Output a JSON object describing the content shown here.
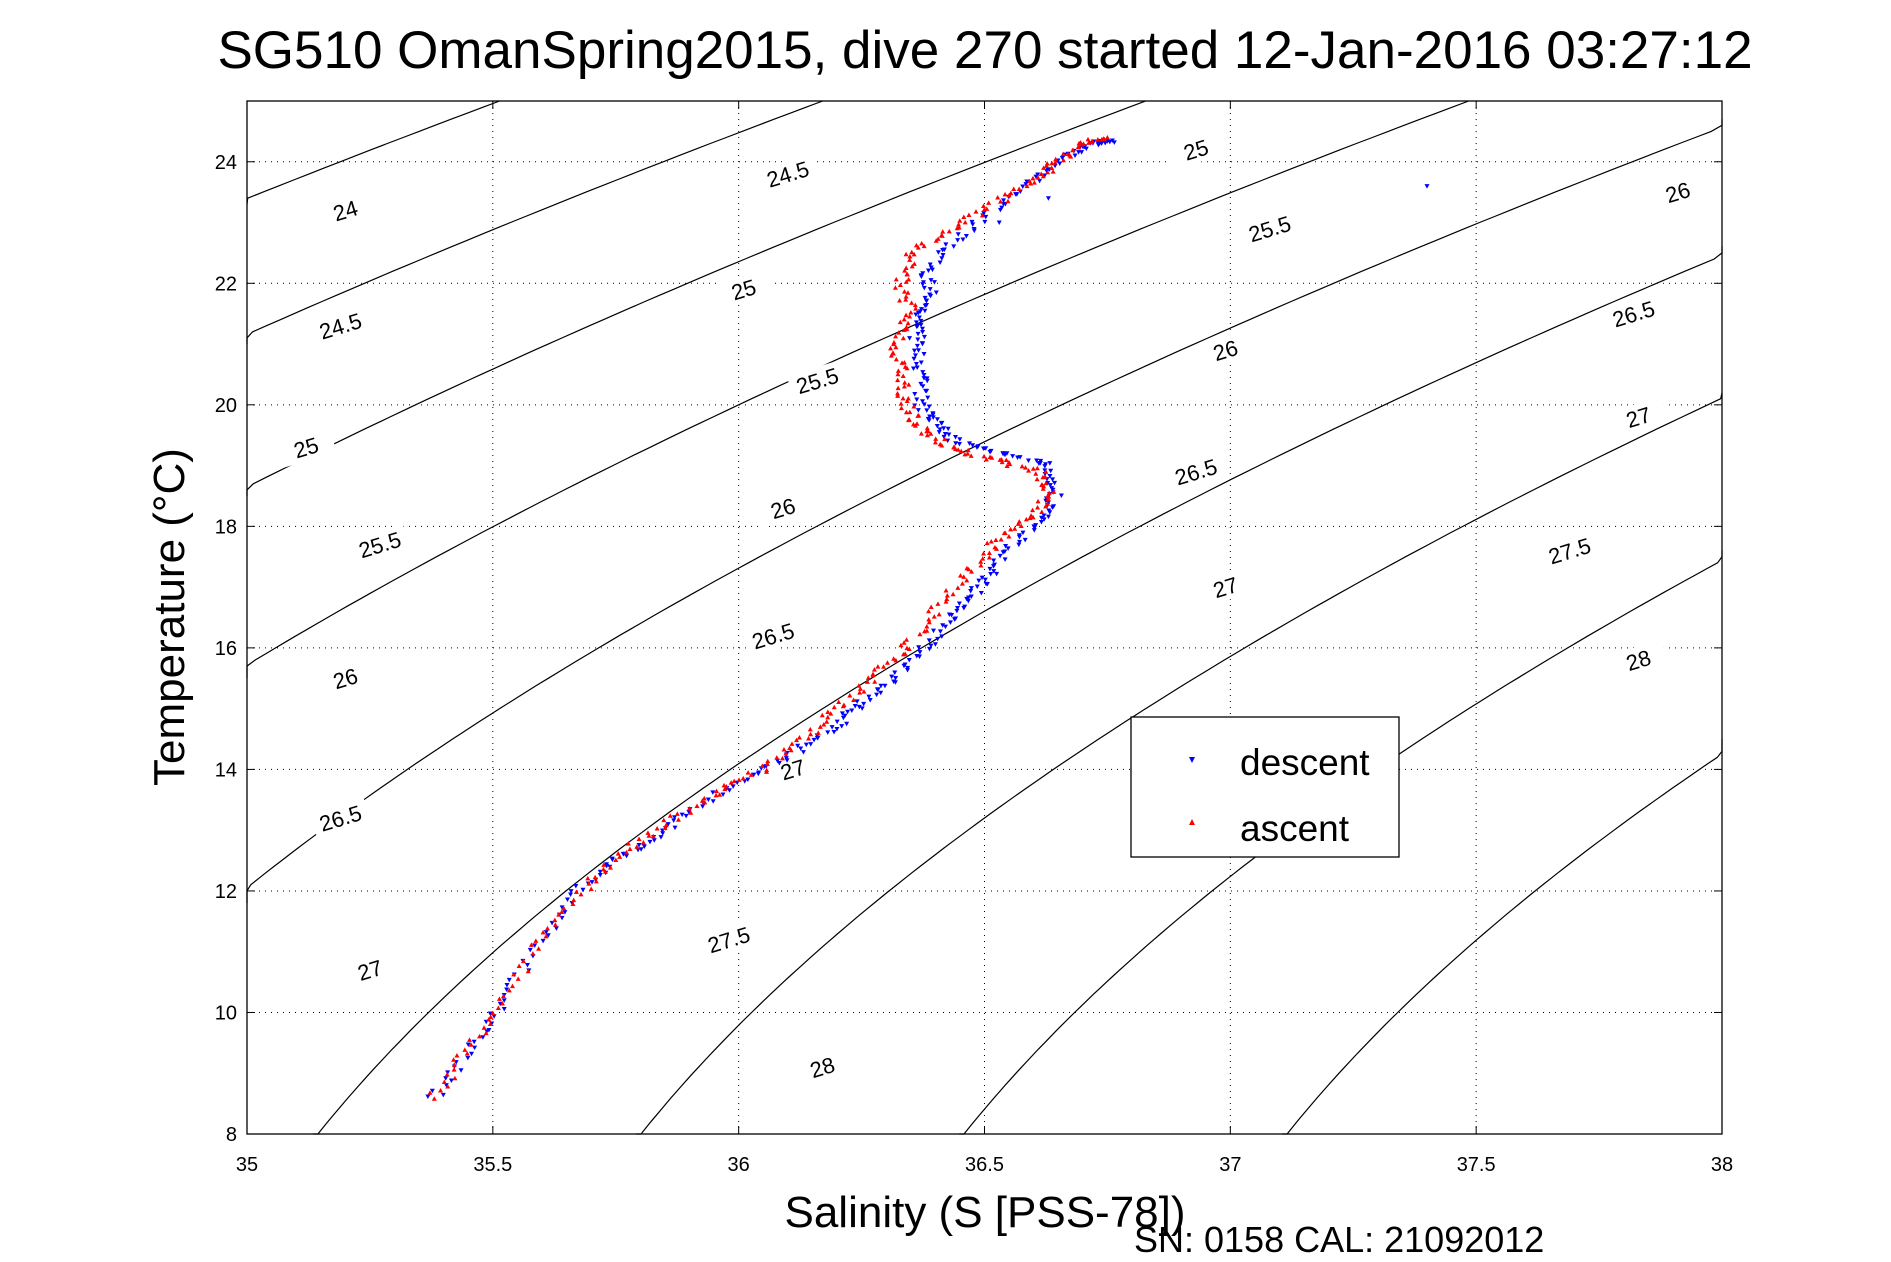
{
  "chart_data": {
    "type": "scatter",
    "title": "SG510 OmanSpring2015, dive 270 started 12-Jan-2016 03:27:12",
    "xlabel": "Salinity (S [PSS-78])",
    "ylabel": "Temperature (°C)",
    "xlim": [
      35,
      38
    ],
    "ylim": [
      8,
      25
    ],
    "xticks": [
      35,
      35.5,
      36,
      36.5,
      37,
      37.5,
      38
    ],
    "yticks": [
      8,
      10,
      12,
      14,
      16,
      18,
      20,
      22,
      24
    ],
    "xtick_labels": [
      "35",
      "35.5",
      "36",
      "36.5",
      "37",
      "37.5",
      "38"
    ],
    "ytick_labels": [
      "8",
      "10",
      "12",
      "14",
      "16",
      "18",
      "20",
      "22",
      "24"
    ],
    "grid": true,
    "legend_position": "center-right",
    "density_contours": {
      "levels": [
        24,
        24.5,
        25,
        25.5,
        26,
        26.5,
        27,
        27.5,
        28
      ],
      "labels": [
        {
          "text": "24",
          "s": 35.2,
          "t": 23.2
        },
        {
          "text": "24.5",
          "s": 35.19,
          "t": 21.3
        },
        {
          "text": "25",
          "s": 35.12,
          "t": 19.3
        },
        {
          "text": "25.5",
          "s": 35.27,
          "t": 17.7
        },
        {
          "text": "26",
          "s": 35.2,
          "t": 15.5
        },
        {
          "text": "26.5",
          "s": 35.19,
          "t": 13.2
        },
        {
          "text": "27",
          "s": 35.25,
          "t": 10.7
        },
        {
          "text": "24.5",
          "s": 36.1,
          "t": 23.8
        },
        {
          "text": "25",
          "s": 36.01,
          "t": 21.9
        },
        {
          "text": "25.5",
          "s": 36.16,
          "t": 20.4
        },
        {
          "text": "26",
          "s": 36.09,
          "t": 18.3
        },
        {
          "text": "26.5",
          "s": 36.07,
          "t": 16.2
        },
        {
          "text": "27",
          "s": 36.11,
          "t": 14.0
        },
        {
          "text": "27.5",
          "s": 35.98,
          "t": 11.2
        },
        {
          "text": "28",
          "s": 36.17,
          "t": 9.1
        },
        {
          "text": "25",
          "s": 36.93,
          "t": 24.2
        },
        {
          "text": "25.5",
          "s": 37.08,
          "t": 22.9
        },
        {
          "text": "26",
          "s": 36.99,
          "t": 20.9
        },
        {
          "text": "26.5",
          "s": 36.93,
          "t": 18.9
        },
        {
          "text": "27",
          "s": 36.99,
          "t": 17.0
        },
        {
          "text": "26",
          "s": 37.91,
          "t": 23.5
        },
        {
          "text": "26.5",
          "s": 37.82,
          "t": 21.5
        },
        {
          "text": "27",
          "s": 37.83,
          "t": 19.8
        },
        {
          "text": "27.5",
          "s": 37.69,
          "t": 17.6
        },
        {
          "text": "28",
          "s": 37.83,
          "t": 15.8
        }
      ]
    },
    "series": [
      {
        "name": "descent",
        "color": "#0000ff",
        "marker": "triangle-down",
        "path": [
          [
            35.38,
            8.6
          ],
          [
            35.45,
            9.4
          ],
          [
            35.52,
            10.2
          ],
          [
            35.6,
            11.2
          ],
          [
            35.67,
            12.0
          ],
          [
            35.75,
            12.5
          ],
          [
            35.83,
            12.9
          ],
          [
            35.92,
            13.4
          ],
          [
            36.02,
            13.9
          ],
          [
            36.12,
            14.3
          ],
          [
            36.2,
            14.7
          ],
          [
            36.25,
            15.1
          ],
          [
            36.32,
            15.5
          ],
          [
            36.38,
            16.0
          ],
          [
            36.43,
            16.5
          ],
          [
            36.48,
            16.9
          ],
          [
            36.52,
            17.3
          ],
          [
            36.57,
            17.8
          ],
          [
            36.62,
            18.2
          ],
          [
            36.65,
            18.6
          ],
          [
            36.63,
            19.0
          ],
          [
            36.54,
            19.2
          ],
          [
            36.44,
            19.4
          ],
          [
            36.4,
            19.7
          ],
          [
            36.37,
            20.0
          ],
          [
            36.37,
            20.5
          ],
          [
            36.36,
            21.0
          ],
          [
            36.37,
            21.4
          ],
          [
            36.39,
            21.8
          ],
          [
            36.38,
            22.2
          ],
          [
            36.44,
            22.7
          ],
          [
            36.52,
            23.2
          ],
          [
            36.6,
            23.7
          ],
          [
            36.67,
            24.1
          ],
          [
            36.72,
            24.3
          ],
          [
            36.76,
            24.35
          ]
        ],
        "outliers": [
          [
            37.4,
            23.6
          ],
          [
            36.53,
            23.0
          ],
          [
            36.63,
            23.4
          ]
        ]
      },
      {
        "name": "ascent",
        "color": "#ff0000",
        "marker": "triangle-up",
        "path": [
          [
            35.38,
            8.6
          ],
          [
            35.45,
            9.4
          ],
          [
            35.52,
            10.2
          ],
          [
            35.6,
            11.2
          ],
          [
            35.68,
            12.0
          ],
          [
            35.76,
            12.6
          ],
          [
            35.85,
            13.1
          ],
          [
            35.95,
            13.6
          ],
          [
            36.05,
            14.0
          ],
          [
            36.13,
            14.5
          ],
          [
            36.2,
            15.0
          ],
          [
            36.27,
            15.5
          ],
          [
            36.34,
            16.0
          ],
          [
            36.4,
            16.6
          ],
          [
            36.46,
            17.2
          ],
          [
            36.52,
            17.7
          ],
          [
            36.59,
            18.1
          ],
          [
            36.63,
            18.5
          ],
          [
            36.61,
            18.9
          ],
          [
            36.52,
            19.1
          ],
          [
            36.43,
            19.3
          ],
          [
            36.37,
            19.6
          ],
          [
            36.34,
            20.0
          ],
          [
            36.33,
            20.5
          ],
          [
            36.32,
            21.0
          ],
          [
            36.35,
            21.5
          ],
          [
            36.33,
            22.0
          ],
          [
            36.35,
            22.5
          ],
          [
            36.43,
            22.9
          ],
          [
            36.52,
            23.3
          ],
          [
            36.6,
            23.7
          ],
          [
            36.65,
            24.0
          ],
          [
            36.7,
            24.3
          ],
          [
            36.75,
            24.4
          ]
        ],
        "outliers": []
      }
    ]
  },
  "legend": {
    "descent_label": "descent",
    "ascent_label": "ascent"
  },
  "footer": {
    "serial": "SN: 0158  CAL: 21092012"
  }
}
